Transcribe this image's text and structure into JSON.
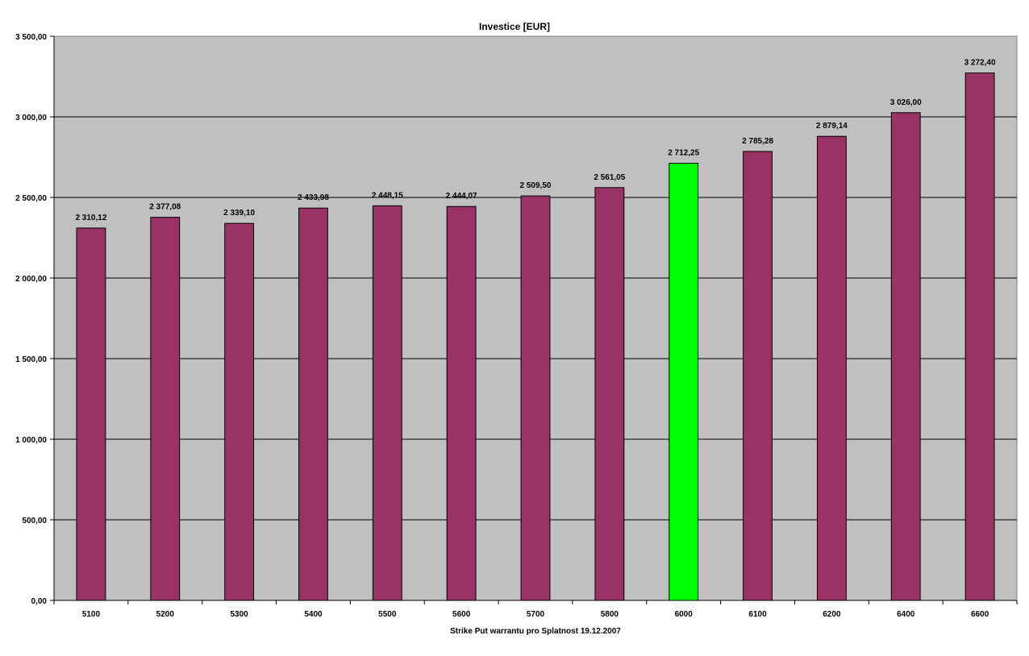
{
  "chart_data": {
    "type": "bar",
    "title": "Investice [EUR]",
    "xlabel": "Strike Put warrantu pro Splatnost 19.12.2007",
    "ylabel": "",
    "categories": [
      "5100",
      "5200",
      "5300",
      "5400",
      "5500",
      "5600",
      "5700",
      "5800",
      "6000",
      "6100",
      "6200",
      "6400",
      "6600"
    ],
    "values": [
      2310.12,
      2377.08,
      2339.1,
      2433.98,
      2448.15,
      2444.07,
      2509.5,
      2561.05,
      2712.25,
      2785.28,
      2879.14,
      3026.0,
      3272.4
    ],
    "value_labels": [
      "2 310,12",
      "2 377,08",
      "2 339,10",
      "2 433,98",
      "2 448,15",
      "2 444,07",
      "2 509,50",
      "2 561,05",
      "2 712,25",
      "2 785,28",
      "2 879,14",
      "3 026,00",
      "3 272,40"
    ],
    "highlight_category": "6000",
    "ylim": [
      0,
      3500
    ],
    "yticks": [
      0,
      500,
      1000,
      1500,
      2000,
      2500,
      3000,
      3500
    ],
    "ytick_labels": [
      "0,00",
      "500,00",
      "1 000,00",
      "1 500,00",
      "2 000,00",
      "2 500,00",
      "3 000,00",
      "3 500,00"
    ],
    "grid": true,
    "legend": "none",
    "colors": {
      "bar": "#993366",
      "highlight_bar": "#00FF00",
      "plot_background": "#C0C0C0",
      "gridline": "#000000",
      "bar_outline": "#000000"
    }
  }
}
